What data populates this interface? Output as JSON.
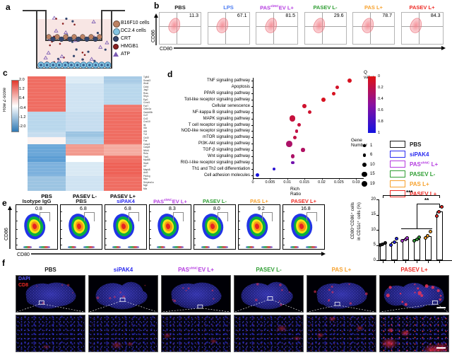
{
  "panels": {
    "a": "a",
    "b": "b",
    "c": "c",
    "d": "d",
    "e": "e",
    "f": "f"
  },
  "panel_a": {
    "legend": [
      {
        "label": "B16F10 cells",
        "icon": "b16f10-cell-icon",
        "color": "#bd8263"
      },
      {
        "label": "DC2.4 cells",
        "icon": "dc24-cell-icon",
        "color": "#82c4e2"
      },
      {
        "label": "CRT",
        "icon": "crt-icon",
        "color": "#35476f"
      },
      {
        "label": "HMGB1",
        "icon": "hmgb1-icon",
        "color": "#8c2222"
      },
      {
        "label": "ATP",
        "icon": "atp-icon",
        "color": "#7a5ab2"
      }
    ]
  },
  "panel_b": {
    "ylabel": "CD86",
    "xlabel": "CD80",
    "plots": [
      {
        "pre": "PBS",
        "sup": "",
        "post": "",
        "color": "#1a1a1a",
        "value": "11.3"
      },
      {
        "pre": "LPS",
        "sup": "",
        "post": "",
        "color": "#4d7df2",
        "value": "67.1"
      },
      {
        "pre": "PAS",
        "sup": "shNC",
        "post": "EV L+",
        "color": "#b43ae0",
        "value": "81.5"
      },
      {
        "pre": "PASEV L-",
        "sup": "",
        "post": "",
        "color": "#2f9e33",
        "value": "29.6"
      },
      {
        "pre": "PAS L+",
        "sup": "",
        "post": "",
        "color": "#f7a12c",
        "value": "78.7"
      },
      {
        "pre": "PASEV L+",
        "sup": "",
        "post": "",
        "color": "#ee2a24",
        "value": "84.3"
      }
    ]
  },
  "panel_e": {
    "ylabel": "CD86",
    "xlabel": "CD80",
    "plots": [
      {
        "pre": "Isotype IgG",
        "sup": "",
        "post": "",
        "color": "#1a1a1a",
        "value": "0.8"
      },
      {
        "pre": "PBS",
        "sup": "",
        "post": "",
        "color": "#1a1a1a",
        "value": "6.8"
      },
      {
        "pre": "siPAK4",
        "sup": "",
        "post": "",
        "color": "#2a2af0",
        "value": "6.8"
      },
      {
        "pre": "PAS",
        "sup": "shNC",
        "post": "EV L+",
        "color": "#b43ae0",
        "value": "8.3"
      },
      {
        "pre": "PASEV L-",
        "sup": "",
        "post": "",
        "color": "#2f9e33",
        "value": "8.0"
      },
      {
        "pre": "PAS L+",
        "sup": "",
        "post": "",
        "color": "#f7a12c",
        "value": "9.2"
      },
      {
        "pre": "PASEV L+",
        "sup": "",
        "post": "",
        "color": "#ee2a24",
        "value": "16.8"
      }
    ]
  },
  "group_legend": {
    "items": [
      {
        "pre": "PBS",
        "sup": "",
        "post": "",
        "color": "#1a1a1a"
      },
      {
        "pre": "siPAK4",
        "sup": "",
        "post": "",
        "color": "#2a2af0"
      },
      {
        "pre": "PAS",
        "sup": "shNC",
        "post": " L+",
        "color": "#b43ae0"
      },
      {
        "pre": "PASEV L-",
        "sup": "",
        "post": "",
        "color": "#2f9e33"
      },
      {
        "pre": "PAS L+",
        "sup": "",
        "post": "",
        "color": "#f7a12c"
      },
      {
        "pre": "PASEV L+",
        "sup": "",
        "post": "",
        "color": "#ee2a24"
      }
    ]
  },
  "panel_f": {
    "stains": [
      {
        "label": "DAPI",
        "color": "#5a5aff"
      },
      {
        "label": "CD8",
        "color": "#ee2a24"
      }
    ],
    "columns": [
      {
        "pre": "PBS",
        "sup": "",
        "post": "",
        "color": "#1a1a1a",
        "red_level": 0.12,
        "shape": 0,
        "bx": 33,
        "by": 36
      },
      {
        "pre": "siPAK4",
        "sup": "",
        "post": "",
        "color": "#2a2af0",
        "red_level": 0.22,
        "shape": 1,
        "bx": 45,
        "by": 32
      },
      {
        "pre": "PAS",
        "sup": "shNC",
        "post": "EV L+",
        "color": "#b43ae0",
        "red_level": 0.3,
        "shape": 0,
        "bx": 52,
        "by": 42
      },
      {
        "pre": "PASEV L-",
        "sup": "",
        "post": "",
        "color": "#2f9e33",
        "red_level": 0.3,
        "shape": 1,
        "bx": 48,
        "by": 30
      },
      {
        "pre": "PAS L+",
        "sup": "",
        "post": "",
        "color": "#f7a12c",
        "red_level": 0.45,
        "shape": 0,
        "bx": 40,
        "by": 38
      },
      {
        "pre": "PASEV L+",
        "sup": "",
        "post": "",
        "color": "#ee2a24",
        "red_level": 0.95,
        "shape": 2,
        "bx": 76,
        "by": 36
      }
    ]
  },
  "chart_data": [
    {
      "type": "heatmap",
      "columns": [
        "PBS",
        "PASEV L-",
        "PASEV L+"
      ],
      "colorbar": {
        "label": "Row Z-score",
        "ticks": [
          "2.0",
          "1.2",
          "0.4",
          "-0.4",
          "-1.2",
          "-2.0"
        ],
        "top_color": "#e2382c",
        "mid_color": "#ffffff",
        "bottom_color": "#2f79b5"
      },
      "row_blocks": [
        {
          "h": 0.06,
          "c": [
            "#ef6d62",
            "#dcebf5",
            "#a8cbe6"
          ]
        },
        {
          "h": 0.19,
          "c": [
            "#ef6d62",
            "#cfe3f2",
            "#b9d7ec"
          ]
        },
        {
          "h": 0.06,
          "c": [
            "#ef6d62",
            "#cfe3f2",
            "#f0776d"
          ]
        },
        {
          "h": 0.17,
          "c": [
            "#b9d7ec",
            "#c6ddef",
            "#ef6d62"
          ]
        },
        {
          "h": 0.05,
          "c": [
            "#c6ddef",
            "#9cc4e2",
            "#ef6d62"
          ]
        },
        {
          "h": 0.06,
          "c": [
            "#fdf4f2",
            "#aed0e9",
            "#ef6d62"
          ]
        },
        {
          "h": 0.1,
          "c": [
            "#6ba7d8",
            "#f29a8e",
            "#f5aca1"
          ]
        },
        {
          "h": 0.06,
          "c": [
            "#5d9ed4",
            "#ffffff",
            "#ef6d62"
          ]
        },
        {
          "h": 0.12,
          "c": [
            "#7db1dd",
            "#d9e9f4",
            "#ee6257"
          ]
        },
        {
          "h": 0.13,
          "c": [
            "#9cc4e2",
            "#cfe3f2",
            "#ef6d62"
          ]
        }
      ],
      "gene_labels": [
        "Tgfb3",
        "Smad3",
        "Wnt4",
        "Cdk4",
        "Jag2",
        "Rras",
        "Sfrp1",
        "Egr1",
        "Ccnd1",
        "Fzd7",
        "Cdkn1a",
        "Gadd45b",
        "Ccl7",
        "Ccl2",
        "Cxcl10",
        "Il6",
        "Il1b",
        "Il15",
        "Tnf",
        "Cd40",
        "Fas",
        "Casp3",
        "Casp8",
        "Nfkb1",
        "Rela",
        "Traf1",
        "Myd88",
        "Stat1",
        "Irf7",
        "Mapk8",
        "Akt3",
        "Pik3cg",
        "Mtor",
        "Serpina1a",
        "Mgll",
        "Mia"
      ]
    },
    {
      "type": "scatter",
      "xlabel": "Rich Ratio",
      "xticks": [
        "0",
        "0.005",
        "0.01",
        "0.015",
        "0.02",
        "0.025",
        "0.03"
      ],
      "xtick_values": [
        0,
        0.005,
        0.01,
        0.015,
        0.02,
        0.025,
        0.03
      ],
      "xlim": [
        0,
        0.032
      ],
      "q_legend": {
        "title": "Q value",
        "ticks": [
          "0",
          "0.2",
          "0.4",
          "0.6",
          "0.8",
          "1"
        ]
      },
      "size_legend": {
        "title": "Gene Number",
        "values": [
          1,
          6,
          10,
          15,
          19
        ]
      },
      "pathways": [
        {
          "name": "TNF signaling pathway",
          "rich_ratio": 0.028,
          "q": 0.05,
          "genes": 10
        },
        {
          "name": "Apoptosis",
          "rich_ratio": 0.0245,
          "q": 0.08,
          "genes": 8
        },
        {
          "name": "PPAR signaling pathway",
          "rich_ratio": 0.0235,
          "q": 0.05,
          "genes": 6
        },
        {
          "name": "Toll-like receptor signaling pathway",
          "rich_ratio": 0.0205,
          "q": 0.05,
          "genes": 9
        },
        {
          "name": "Cellular senescence",
          "rich_ratio": 0.015,
          "q": 0.1,
          "genes": 9
        },
        {
          "name": "NF-kappa B signaling pathway",
          "rich_ratio": 0.0165,
          "q": 0.1,
          "genes": 7
        },
        {
          "name": "MAPK signaling pathway",
          "rich_ratio": 0.0115,
          "q": 0.15,
          "genes": 19
        },
        {
          "name": "T cell receptor signaling pathway",
          "rich_ratio": 0.0135,
          "q": 0.15,
          "genes": 7
        },
        {
          "name": "NOD-like receptor signaling pathway",
          "rich_ratio": 0.0127,
          "q": 0.18,
          "genes": 6
        },
        {
          "name": "mTOR signaling pathway",
          "rich_ratio": 0.0122,
          "q": 0.18,
          "genes": 8
        },
        {
          "name": "PI3K-Akt signaling pathway",
          "rich_ratio": 0.0106,
          "q": 0.3,
          "genes": 19
        },
        {
          "name": "TGF-β signaling pathway",
          "rich_ratio": 0.0146,
          "q": 0.28,
          "genes": 8
        },
        {
          "name": "Wnt signaling pathway",
          "rich_ratio": 0.0116,
          "q": 0.3,
          "genes": 9
        },
        {
          "name": "RIG-I-like receptor signaling pathway",
          "rich_ratio": 0.0116,
          "q": 0.6,
          "genes": 4
        },
        {
          "name": "Th1 and Th2 cell differentiation",
          "rich_ratio": 0.0062,
          "q": 0.9,
          "genes": 4
        },
        {
          "name": "Cell adhesion molecules",
          "rich_ratio": 0.0014,
          "q": 0.97,
          "genes": 6
        }
      ]
    },
    {
      "type": "bar",
      "ylabel_line1": "CD80⁺CD86⁺ cells",
      "ylabel_line2": "in CD11c⁺ cells (%)",
      "yticks": [
        "0",
        "5",
        "10",
        "15",
        "20"
      ],
      "ytick_values": [
        0,
        5,
        10,
        15,
        20
      ],
      "ylim": [
        0,
        20
      ],
      "categories": [
        "PBS",
        "siPAK4",
        "PASshNC L+",
        "PASEV L-",
        "PAS L+",
        "PASEV L+"
      ],
      "values": [
        5.3,
        6.0,
        6.9,
        6.9,
        8.0,
        16.0
      ],
      "points": [
        [
          4.9,
          5.3,
          5.8
        ],
        [
          5.0,
          6.0,
          7.0
        ],
        [
          6.4,
          6.9,
          7.4
        ],
        [
          6.4,
          6.9,
          7.5
        ],
        [
          7.4,
          8.0,
          9.4
        ],
        [
          14.6,
          16.0,
          17.5
        ]
      ],
      "colors": [
        "#1a1a1a",
        "#2a2af0",
        "#b43ae0",
        "#2f9e33",
        "#f7a12c",
        "#ee2a24"
      ],
      "significance": [
        {
          "label": "***"
        },
        {
          "label": "**"
        }
      ]
    }
  ]
}
